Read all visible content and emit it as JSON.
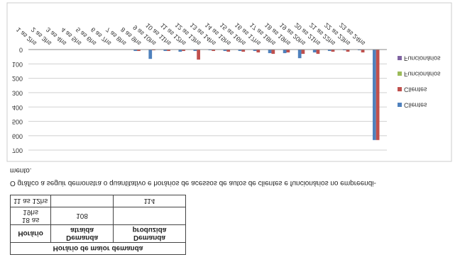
{
  "table": {
    "title": "Horário de maior demanda",
    "header": [
      "Horário",
      "Demanda atraída",
      "Demanda produzida"
    ],
    "rows": [
      [
        "18 as 19hs",
        "108",
        null
      ],
      [
        "11 as 12hs",
        null,
        "114"
      ]
    ]
  },
  "paragraph": [
    "O gráfico a seguir demonstra o quantitativo e horários de acessos de autos de clientes e funcionários no empreendi-",
    "mento."
  ],
  "chart_data": {
    "type": "bar",
    "categories": [
      "1 as 2hs",
      "2 as 3hs",
      "3 as 4hs",
      "4 as 5hs",
      "5 as 6hs",
      "6 as 7hs",
      "7 as 8hs",
      "8 as 9hs",
      "9 as 10hs",
      "10 as 11hs",
      "11 as 12hs",
      "12 as 13hs",
      "13 as 14hs",
      "14 as 15hs",
      "15 as 16hs",
      "16 as 17hs",
      "17 as 18hs",
      "18 as 19hs",
      "19 as 20hs",
      "20 as 21hs",
      "21 as 22hs",
      "22 as 23hs",
      "23 as 24hs",
      null
    ],
    "series": [
      {
        "name": "Clientes",
        "color": "#4f81bd",
        "values": [
          0,
          0,
          0,
          0,
          0,
          0,
          0,
          10,
          65,
          10,
          15,
          10,
          5,
          10,
          10,
          10,
          25,
          25,
          60,
          20,
          10,
          5,
          5,
          630
        ]
      },
      {
        "name": "Clientes",
        "color": "#c0504d",
        "values": [
          0,
          0,
          0,
          0,
          0,
          0,
          0,
          10,
          5,
          10,
          10,
          70,
          10,
          15,
          15,
          20,
          30,
          20,
          30,
          30,
          15,
          15,
          20,
          630
        ]
      },
      {
        "name": "Funcionários",
        "color": "#9bbb59",
        "values": [
          0,
          0,
          0,
          0,
          0,
          0,
          0,
          0,
          0,
          0,
          0,
          0,
          0,
          0,
          0,
          0,
          0,
          0,
          0,
          0,
          0,
          0,
          0,
          0
        ]
      },
      {
        "name": "Funcionários",
        "color": "#8064a2",
        "values": [
          0,
          0,
          0,
          0,
          0,
          0,
          0,
          0,
          0,
          0,
          0,
          0,
          0,
          0,
          0,
          0,
          0,
          0,
          0,
          0,
          0,
          0,
          0,
          0
        ]
      }
    ],
    "ylim": [
      0,
      700
    ],
    "yticks": [
      0,
      100,
      200,
      300,
      400,
      500,
      600,
      700
    ],
    "grid": true,
    "legend": "right"
  }
}
